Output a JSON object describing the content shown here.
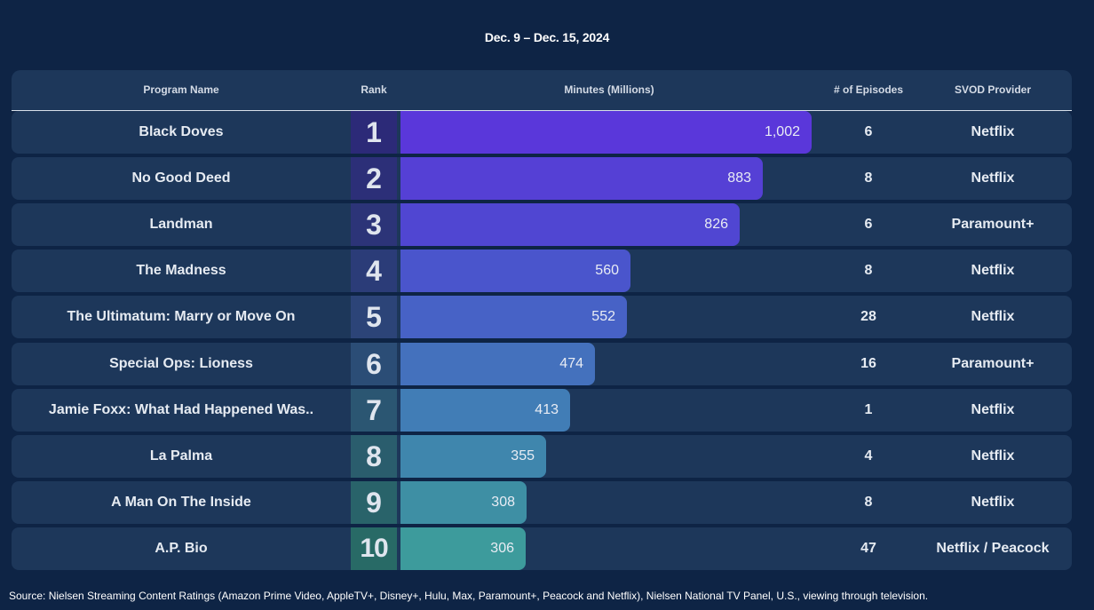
{
  "date_range": "Dec. 9 – Dec. 15, 2024",
  "headers": {
    "program": "Program Name",
    "rank": "Rank",
    "minutes": "Minutes (Millions)",
    "episodes": "# of Episodes",
    "provider": "SVOD Provider"
  },
  "rows": [
    {
      "program": "Black Doves",
      "rank": "1",
      "minutes_label": "1,002",
      "episodes": "6",
      "provider": "Netflix"
    },
    {
      "program": "No Good Deed",
      "rank": "2",
      "minutes_label": "883",
      "episodes": "8",
      "provider": "Netflix"
    },
    {
      "program": "Landman",
      "rank": "3",
      "minutes_label": "826",
      "episodes": "6",
      "provider": "Paramount+"
    },
    {
      "program": "The Madness",
      "rank": "4",
      "minutes_label": "560",
      "episodes": "8",
      "provider": "Netflix"
    },
    {
      "program": "The Ultimatum: Marry or Move On",
      "rank": "5",
      "minutes_label": "552",
      "episodes": "28",
      "provider": "Netflix"
    },
    {
      "program": "Special Ops: Lioness",
      "rank": "6",
      "minutes_label": "474",
      "episodes": "16",
      "provider": "Paramount+"
    },
    {
      "program": "Jamie Foxx: What Had Happened Was..",
      "rank": "7",
      "minutes_label": "413",
      "episodes": "1",
      "provider": "Netflix"
    },
    {
      "program": "La Palma",
      "rank": "8",
      "minutes_label": "355",
      "episodes": "4",
      "provider": "Netflix"
    },
    {
      "program": "A Man On The Inside",
      "rank": "9",
      "minutes_label": "308",
      "episodes": "8",
      "provider": "Netflix"
    },
    {
      "program": "A.P. Bio",
      "rank": "10",
      "minutes_label": "306",
      "episodes": "47",
      "provider": "Netflix / Peacock"
    }
  ],
  "chart_data": {
    "type": "bar",
    "orientation": "horizontal",
    "title": "Dec. 9 – Dec. 15, 2024",
    "xlabel": "Minutes (Millions)",
    "categories": [
      "Black Doves",
      "No Good Deed",
      "Landman",
      "The Madness",
      "The Ultimatum: Marry or Move On",
      "Special Ops: Lioness",
      "Jamie Foxx: What Had Happened Was..",
      "La Palma",
      "A Man On The Inside",
      "A.P. Bio"
    ],
    "values": [
      1002,
      883,
      826,
      560,
      552,
      474,
      413,
      355,
      308,
      306
    ],
    "bar_colors": [
      "#5a37da",
      "#5540d5",
      "#5046d2",
      "#4a55cc",
      "#4762c6",
      "#4471bd",
      "#417db6",
      "#3f86ad",
      "#3e8fa4",
      "#3d9b9c"
    ],
    "rank_colors": [
      "#2c2a78",
      "#2c2f78",
      "#2c3478",
      "#2b3c78",
      "#2c4478",
      "#2b4d76",
      "#2b5672",
      "#2a5d6d",
      "#29636a",
      "#286a66"
    ]
  },
  "source": "Source: Nielsen Streaming Content Ratings (Amazon Prime Video, AppleTV+, Disney+, Hulu, Max, Paramount+, Peacock and Netflix), Nielsen National TV Panel, U.S., viewing through television."
}
